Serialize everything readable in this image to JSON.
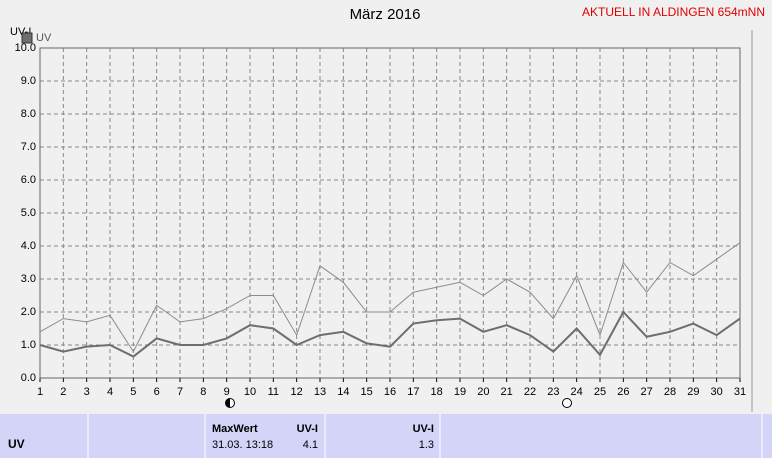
{
  "chart_data": {
    "type": "line",
    "title": "März 2016",
    "subtitle": "AKTUELL IN ALDINGEN 654mNN",
    "ylabel": "UV-I",
    "x": [
      1,
      2,
      3,
      4,
      5,
      6,
      7,
      8,
      9,
      10,
      11,
      12,
      13,
      14,
      15,
      16,
      17,
      18,
      19,
      20,
      21,
      22,
      23,
      24,
      25,
      26,
      27,
      28,
      29,
      30,
      31
    ],
    "xlim": [
      1,
      31
    ],
    "xticks": [
      1,
      2,
      3,
      4,
      5,
      6,
      7,
      8,
      9,
      10,
      11,
      12,
      13,
      14,
      15,
      16,
      17,
      18,
      19,
      20,
      21,
      22,
      23,
      24,
      25,
      26,
      27,
      28,
      29,
      30,
      31
    ],
    "ylim": [
      0,
      10
    ],
    "yticks": [
      {
        "value": 0,
        "label": "0.0"
      },
      {
        "value": 1,
        "label": "1.0"
      },
      {
        "value": 2,
        "label": "2.0"
      },
      {
        "value": 3,
        "label": "3.0"
      },
      {
        "value": 4,
        "label": "4.0"
      },
      {
        "value": 5,
        "label": "5.0"
      },
      {
        "value": 6,
        "label": "6.0"
      },
      {
        "value": 7,
        "label": "7.0"
      },
      {
        "value": 8,
        "label": "8.0"
      },
      {
        "value": 9,
        "label": "9.0"
      },
      {
        "value": 10,
        "label": "10.0"
      }
    ],
    "grid": true,
    "legend": "top-left",
    "series": [
      {
        "name": "UV",
        "color": "#6e6e6e",
        "values": [
          1.0,
          0.8,
          0.95,
          1.0,
          0.65,
          1.2,
          1.0,
          1.0,
          1.2,
          1.6,
          1.5,
          1.0,
          1.3,
          1.4,
          1.05,
          0.95,
          1.65,
          1.75,
          1.8,
          1.4,
          1.6,
          1.3,
          0.8,
          1.5,
          0.7,
          2.0,
          1.25,
          1.4,
          1.65,
          1.3,
          1.8
        ]
      },
      {
        "color": "#8c8c8c",
        "values": [
          1.4,
          1.8,
          1.7,
          1.9,
          0.8,
          2.2,
          1.7,
          1.8,
          2.1,
          2.5,
          2.5,
          1.3,
          3.4,
          2.9,
          2.0,
          2.0,
          2.6,
          2.75,
          2.9,
          2.5,
          3.0,
          2.6,
          1.8,
          3.1,
          1.3,
          3.5,
          2.6,
          3.5,
          3.1,
          3.6,
          4.1
        ]
      }
    ]
  },
  "table": {
    "cells": [
      "UV",
      "MaxWert",
      "UV-I",
      "31.03.  13:18",
      "4.1",
      "UV-I",
      "1.3"
    ]
  }
}
